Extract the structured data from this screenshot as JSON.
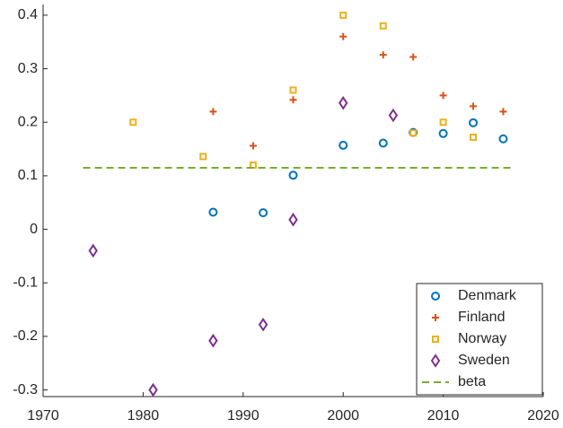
{
  "chart_data": {
    "type": "scatter",
    "xlim": [
      1970,
      2020
    ],
    "xticks": [
      1970,
      1980,
      1990,
      2000,
      2010,
      2020
    ],
    "ylim": [
      -0.3125,
      0.42
    ],
    "yticks": [
      -0.3,
      -0.2,
      -0.1,
      0,
      0.1,
      0.2,
      0.3,
      0.4
    ],
    "legend": "bottom-right",
    "series": [
      {
        "name": "Denmark",
        "color": "#0072BD",
        "marker": "circle",
        "x": [
          1987,
          1992,
          1995,
          2000,
          2004,
          2007,
          2010,
          2013,
          2016
        ],
        "values": [
          0.032,
          0.031,
          0.101,
          0.157,
          0.161,
          0.181,
          0.179,
          0.199,
          0.169
        ]
      },
      {
        "name": "Finland",
        "color": "#D95319",
        "marker": "plus",
        "x": [
          1987,
          1991,
          1995,
          2000,
          2004,
          2007,
          2010,
          2013,
          2016
        ],
        "values": [
          0.22,
          0.156,
          0.242,
          0.36,
          0.326,
          0.322,
          0.25,
          0.23,
          0.22
        ]
      },
      {
        "name": "Norway",
        "color": "#EDB120",
        "marker": "square",
        "x": [
          1979,
          1986,
          1991,
          1995,
          2000,
          2004,
          2007,
          2010,
          2013
        ],
        "values": [
          0.2,
          0.136,
          0.12,
          0.26,
          0.4,
          0.38,
          0.18,
          0.2,
          0.172
        ]
      },
      {
        "name": "Sweden",
        "color": "#7E2F8E",
        "marker": "diamond",
        "x": [
          1975,
          1981,
          1987,
          1992,
          1995,
          2000,
          2005
        ],
        "values": [
          -0.04,
          -0.3,
          -0.208,
          -0.178,
          0.018,
          0.236,
          0.213
        ]
      },
      {
        "name": "beta",
        "color": "#77AC30",
        "marker": "dashed-line",
        "x": [
          1974,
          2017
        ],
        "values": [
          0.115,
          0.115
        ]
      }
    ]
  }
}
